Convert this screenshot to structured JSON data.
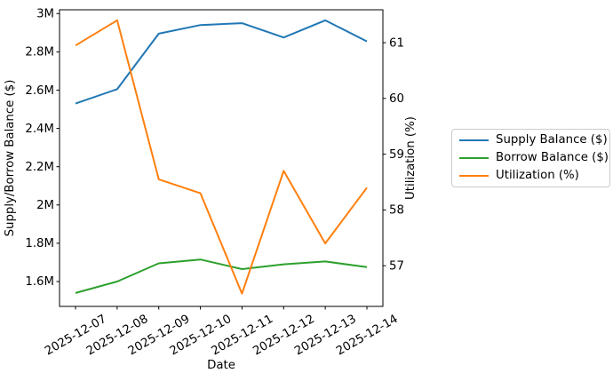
{
  "chart_data": {
    "type": "line",
    "title": "",
    "xlabel": "Date",
    "ylabel_left": "Supply/Borrow Balance ($)",
    "ylabel_right": "Utilization (%)",
    "grid": false,
    "legend_position": "outside-right",
    "categories": [
      "2025-12-07",
      "2025-12-08",
      "2025-12-09",
      "2025-12-10",
      "2025-12-11",
      "2025-12-12",
      "2025-12-13",
      "2025-12-14"
    ],
    "series": [
      {
        "name": "Supply Balance ($)",
        "axis": "left",
        "color": "#1f77b4",
        "values": [
          2530000,
          2605000,
          2895000,
          2940000,
          2950000,
          2875000,
          2965000,
          2855000
        ]
      },
      {
        "name": "Borrow Balance ($)",
        "axis": "left",
        "color": "#2ca02c",
        "values": [
          1540000,
          1600000,
          1695000,
          1715000,
          1665000,
          1690000,
          1705000,
          1675000
        ]
      },
      {
        "name": "Utilization (%)",
        "axis": "right",
        "color": "#ff7f0e",
        "values": [
          60.95,
          61.4,
          58.55,
          58.3,
          56.5,
          58.7,
          57.4,
          58.4
        ]
      }
    ],
    "left_axis": {
      "ylim": [
        1470000,
        3020000
      ],
      "ticks": [
        {
          "value": 1600000,
          "label": "1.6M"
        },
        {
          "value": 1800000,
          "label": "1.8M"
        },
        {
          "value": 2000000,
          "label": "2M"
        },
        {
          "value": 2200000,
          "label": "2.2M"
        },
        {
          "value": 2400000,
          "label": "2.4M"
        },
        {
          "value": 2600000,
          "label": "2.6M"
        },
        {
          "value": 2800000,
          "label": "2.8M"
        },
        {
          "value": 3000000,
          "label": "3M"
        }
      ]
    },
    "right_axis": {
      "ylim": [
        56.27,
        61.59
      ],
      "ticks": [
        {
          "value": 57,
          "label": "57"
        },
        {
          "value": 58,
          "label": "58"
        },
        {
          "value": 59,
          "label": "59"
        },
        {
          "value": 60,
          "label": "60"
        },
        {
          "value": 61,
          "label": "61"
        }
      ]
    }
  }
}
